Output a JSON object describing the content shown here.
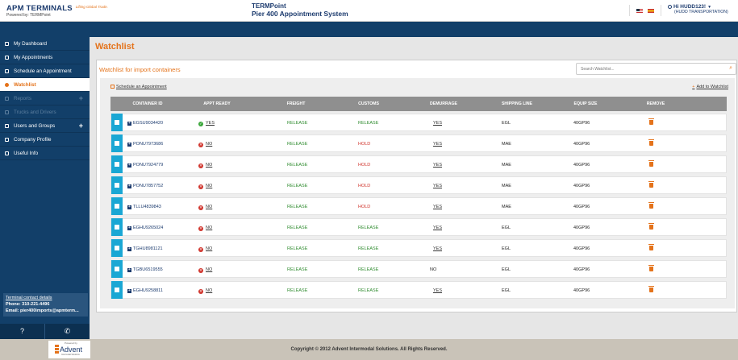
{
  "header": {
    "brand": "APM TERMINALS",
    "brand_tagline": "Lifting Global Trade.",
    "powered_by": "Powered by: TERMPoint",
    "system_title": "TERMPoint",
    "system_subtitle": "Pier 400 Appointment System",
    "user_greeting": "Hi HUDD123!",
    "user_company": "(HUDD TRANSPORTATION)"
  },
  "sidebar": {
    "items": [
      {
        "label": "My Dashboard"
      },
      {
        "label": "My Appointments"
      },
      {
        "label": "Schedule an Appointment"
      },
      {
        "label": "Watchlist"
      },
      {
        "label": "Reports"
      },
      {
        "label": "Trucks and Drivers"
      },
      {
        "label": "Users and Groups"
      },
      {
        "label": "Company Profile"
      },
      {
        "label": "Useful Info"
      }
    ],
    "contact": {
      "title": "Terminal contact details",
      "phone": "Phone: 310-221-4496",
      "email": "Email: pier400imports@apmterm..."
    }
  },
  "main": {
    "page_title": "Watchlist",
    "panel_title": "Watchlist for import containers",
    "search_placeholder": "Search Watchlist...",
    "schedule_link": "Schedule an Appointment",
    "add_link": "Add to Watchlist",
    "columns": [
      "CONTAINER ID",
      "APPT READY",
      "FREIGHT",
      "CUSTOMS",
      "DEMURRAGE",
      "SHIPPING LINE",
      "EQUIP SIZE",
      "REMOVE"
    ],
    "rows": [
      {
        "id": "EGSU9034420",
        "ready": "YES",
        "freight": "RELEASE",
        "customs": "RELEASE",
        "demurrage": "YES",
        "line": "EGL",
        "size": "40GP96"
      },
      {
        "id": "PONU7973686",
        "ready": "NO",
        "freight": "RELEASE",
        "customs": "HOLD",
        "demurrage": "YES",
        "line": "MAE",
        "size": "40GP96"
      },
      {
        "id": "PONU7924779",
        "ready": "NO",
        "freight": "RELEASE",
        "customs": "HOLD",
        "demurrage": "YES",
        "line": "MAE",
        "size": "40GP96"
      },
      {
        "id": "PONU7857752",
        "ready": "NO",
        "freight": "RELEASE",
        "customs": "HOLD",
        "demurrage": "YES",
        "line": "MAE",
        "size": "40GP96"
      },
      {
        "id": "TLLU4839843",
        "ready": "NO",
        "freight": "RELEASE",
        "customs": "HOLD",
        "demurrage": "YES",
        "line": "MAE",
        "size": "40GP96"
      },
      {
        "id": "EGHU9265024",
        "ready": "NO",
        "freight": "RELEASE",
        "customs": "RELEASE",
        "demurrage": "YES",
        "line": "EGL",
        "size": "40GP96"
      },
      {
        "id": "TGHU8981121",
        "ready": "NO",
        "freight": "RELEASE",
        "customs": "RELEASE",
        "demurrage": "YES",
        "line": "EGL",
        "size": "40GP96"
      },
      {
        "id": "TGBU6519555",
        "ready": "NO",
        "freight": "RELEASE",
        "customs": "RELEASE",
        "demurrage": "NO",
        "line": "EGL",
        "size": "40GP96"
      },
      {
        "id": "EGHU9258811",
        "ready": "NO",
        "freight": "RELEASE",
        "customs": "RELEASE",
        "demurrage": "YES",
        "line": "EGL",
        "size": "40GP96"
      }
    ]
  },
  "footer": {
    "copyright": "Copyright © 2012 Advent Intermodal Solutions. All Rights Reserved.",
    "advent_powered": "Powered by",
    "advent_name": "Advent",
    "advent_sub": "Intermodal Solutions"
  },
  "colors": {
    "accent": "#e4731b",
    "navy": "#123f69",
    "select_blue": "#1aa7d4",
    "release_green": "#2e8b2e",
    "hold_red": "#d0342c"
  }
}
